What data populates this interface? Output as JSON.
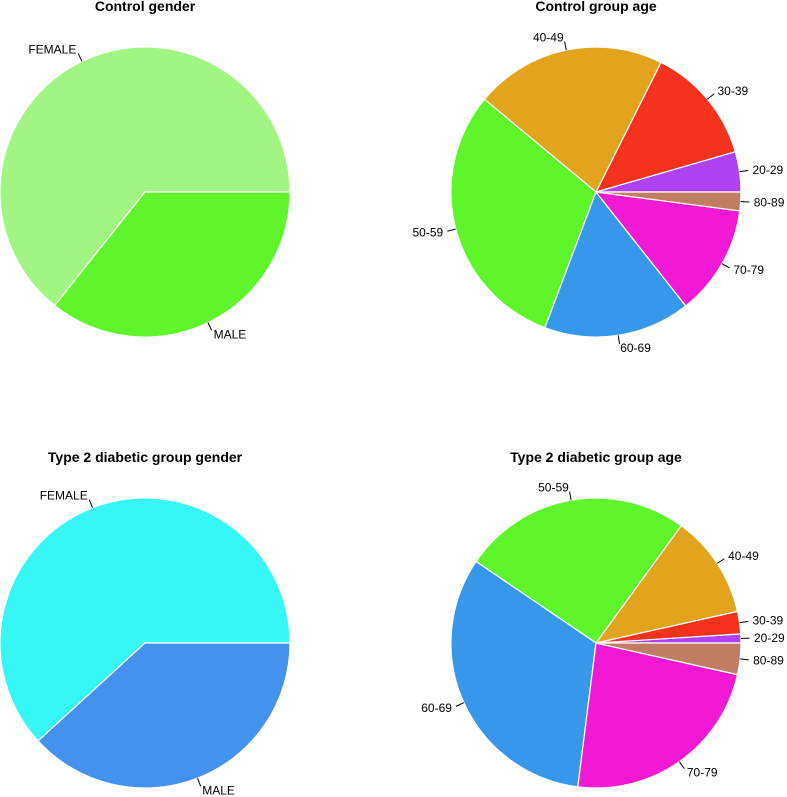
{
  "chart_data": [
    {
      "type": "pie",
      "title": "Control gender",
      "start": "3 o'clock",
      "direction": "counter-clockwise",
      "slices": [
        {
          "label": "FEMALE",
          "value": 64.3,
          "color": "#A1F582"
        },
        {
          "label": "MALE",
          "value": 35.7,
          "color": "#5EF52A"
        }
      ]
    },
    {
      "type": "pie",
      "title": "Control group age",
      "start": "3 o'clock",
      "direction": "counter-clockwise",
      "slices": [
        {
          "label": "20-29",
          "value": 4.3,
          "color": "#B042F5"
        },
        {
          "label": "30-39",
          "value": 12.6,
          "color": "#F5321C"
        },
        {
          "label": "40-49",
          "value": 20.5,
          "color": "#E2A41D"
        },
        {
          "label": "50-59",
          "value": 29.1,
          "color": "#5EF52A"
        },
        {
          "label": "60-69",
          "value": 15.7,
          "color": "#3798EB"
        },
        {
          "label": "70-79",
          "value": 11.8,
          "color": "#F219D4"
        },
        {
          "label": "80-89",
          "value": 2.0,
          "color": "#C07D62"
        }
      ]
    },
    {
      "type": "pie",
      "title": "Type 2 diabetic group gender",
      "start": "3 o'clock",
      "direction": "counter-clockwise",
      "slices": [
        {
          "label": "FEMALE",
          "value": 61.8,
          "color": "#36F7F5"
        },
        {
          "label": "MALE",
          "value": 38.2,
          "color": "#4492EE"
        }
      ]
    },
    {
      "type": "pie",
      "title": "Type 2 diabetic group age",
      "start": "3 o'clock",
      "direction": "counter-clockwise",
      "slices": [
        {
          "label": "20-29",
          "value": 1.0,
          "color": "#B042F5"
        },
        {
          "label": "30-39",
          "value": 2.5,
          "color": "#F5321C"
        },
        {
          "label": "40-49",
          "value": 11.5,
          "color": "#E2A41D"
        },
        {
          "label": "50-59",
          "value": 25.5,
          "color": "#5EF52A"
        },
        {
          "label": "60-69",
          "value": 32.5,
          "color": "#3798EB"
        },
        {
          "label": "70-79",
          "value": 23.5,
          "color": "#F219D4"
        },
        {
          "label": "80-89",
          "value": 3.5,
          "color": "#C07D62"
        }
      ]
    }
  ]
}
